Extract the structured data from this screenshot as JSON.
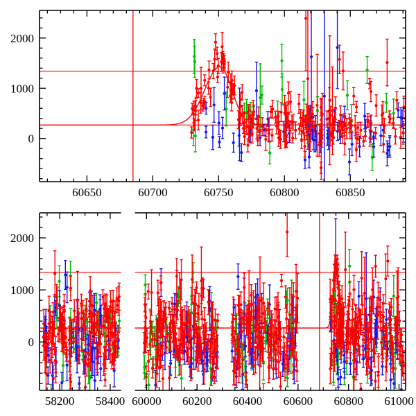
{
  "figure": {
    "background": "#ffffff",
    "frame_color": "#000000",
    "tick_label_color": "#000000"
  },
  "chart_data": {
    "type": "scatter",
    "title": "",
    "xlabel": "",
    "ylabel": "",
    "seed": 7,
    "colors": {
      "red": "#ff0000",
      "green": "#00bb00",
      "blue": "#1515ef"
    },
    "legend": "none",
    "grid": false,
    "description": "Two-panel transient/microlensing light curve: flux vs MJD. Dense survey photometry in red, green and blue with vertical error bars, red model curve (flat baseline 268 with asymmetric peak ~1430 at MJD 60751), red horizontal reference lines at 268 and 1340, red vertical epoch line at MJD 60685. Bottom panel has a broken x-axis (gap between MJD 58443 and 59954) showing four observing seasons.",
    "panels": [
      {
        "name": "top",
        "x_segments": [
          {
            "min": 60614,
            "max": 60892,
            "major_ticks": [
              60650,
              60700,
              60750,
              60800,
              60850
            ],
            "minor_step": 10
          }
        ],
        "y_axis": {
          "min": -860,
          "max": 2550,
          "major_ticks": [
            0,
            1000,
            2000
          ],
          "minor_step": 200
        },
        "h_lines": [
          268,
          1340
        ],
        "v_lines": [
          60685
        ],
        "model": {
          "base": 268,
          "amp": 1160,
          "t0": 60751,
          "sigma_rise": 11.5,
          "sigma_fall": 9
        },
        "series": [
          {
            "name": "green-survey",
            "color_key": "green",
            "clusters": [
              {
                "x0": 60730,
                "x1": 60890,
                "n": 26,
                "mean": 430,
                "sd": 470,
                "err0": 150,
                "err1": 380,
                "spike_frac": 0.08,
                "spike_add": 1400
              }
            ]
          },
          {
            "name": "blue-survey",
            "color_key": "blue",
            "clusters": [
              {
                "x0": 60740,
                "x1": 60892,
                "n": 62,
                "mean": 120,
                "sd": 260,
                "err0": 100,
                "err1": 260,
                "spike_frac": 0.05,
                "spike_add": 1100
              },
              {
                "x0": 60818,
                "x1": 60856,
                "n": 3,
                "mean": 1500,
                "sd": 600,
                "err0": 800,
                "err1": 1900
              }
            ]
          },
          {
            "name": "red-survey",
            "color_key": "red",
            "clusters": [
              {
                "x0": 60727,
                "x1": 60783,
                "n": 72,
                "follow_model": true,
                "scatter": 175,
                "err0": 90,
                "err1": 210,
                "spike_frac": 0.04,
                "spike_add": 500
              },
              {
                "x0": 60783,
                "x1": 60892,
                "n": 125,
                "mean": 260,
                "sd": 235,
                "err0": 90,
                "err1": 240,
                "spike_frac": 0.07,
                "spike_add": 1300
              },
              {
                "x0": 60813,
                "x1": 60842,
                "n": 6,
                "mean": 900,
                "sd": 650,
                "err0": 700,
                "err1": 1500
              }
            ]
          }
        ]
      },
      {
        "name": "bottom",
        "x_segments": [
          {
            "min": 58120,
            "max": 58443,
            "major_ticks": [
              58200,
              58400
            ],
            "minor_step": 50
          },
          {
            "min": 59954,
            "max": 61026,
            "major_ticks": [
              60000,
              60200,
              60400,
              60600,
              60800,
              61000
            ],
            "minor_step": 50
          }
        ],
        "y_axis": {
          "min": -930,
          "max": 2480,
          "major_ticks": [
            0,
            1000,
            2000
          ],
          "minor_step": 200
        },
        "h_lines": [
          268,
          1340
        ],
        "v_lines": [
          60685
        ],
        "model": {
          "base": 268,
          "amp": 1160,
          "t0": 60751,
          "sigma_rise": 11.5,
          "sigma_fall": 9
        },
        "series": [
          {
            "name": "green-survey",
            "color_key": "green",
            "clusters": [
              {
                "x0": 58135,
                "x1": 58438,
                "n": 36,
                "mean": 80,
                "sd": 420,
                "err0": 150,
                "err1": 400,
                "spike_frac": 0.05,
                "spike_add": 1200
              },
              {
                "x0": 59988,
                "x1": 60282,
                "n": 35,
                "mean": 80,
                "sd": 420,
                "err0": 150,
                "err1": 400,
                "spike_frac": 0.05,
                "spike_add": 1200
              },
              {
                "x0": 60338,
                "x1": 60602,
                "n": 31,
                "mean": 80,
                "sd": 420,
                "err0": 150,
                "err1": 400,
                "spike_frac": 0.05,
                "spike_add": 1200
              },
              {
                "x0": 60727,
                "x1": 61020,
                "n": 36,
                "mean": 80,
                "sd": 420,
                "err0": 150,
                "err1": 400,
                "spike_frac": 0.05,
                "spike_add": 1200
              }
            ]
          },
          {
            "name": "blue-survey",
            "color_key": "blue",
            "clusters": [
              {
                "x0": 58135,
                "x1": 58438,
                "n": 56,
                "mean": -30,
                "sd": 380,
                "err0": 120,
                "err1": 330,
                "spike_frac": 0.05,
                "spike_add": 1100
              },
              {
                "x0": 59988,
                "x1": 60282,
                "n": 55,
                "mean": -30,
                "sd": 380,
                "err0": 120,
                "err1": 330,
                "spike_frac": 0.05,
                "spike_add": 1100
              },
              {
                "x0": 60338,
                "x1": 60602,
                "n": 49,
                "mean": -30,
                "sd": 380,
                "err0": 120,
                "err1": 330,
                "spike_frac": 0.05,
                "spike_add": 1100
              },
              {
                "x0": 60727,
                "x1": 61020,
                "n": 56,
                "mean": -30,
                "sd": 380,
                "err0": 120,
                "err1": 330,
                "spike_frac": 0.05,
                "spike_add": 1100
              }
            ]
          },
          {
            "name": "red-survey",
            "color_key": "red",
            "clusters": [
              {
                "x0": 58135,
                "x1": 58438,
                "n": 150,
                "mean": 120,
                "sd": 380,
                "err0": 110,
                "err1": 300,
                "spike_frac": 0.08,
                "spike_add": 1300
              },
              {
                "x0": 59988,
                "x1": 60282,
                "n": 148,
                "mean": 120,
                "sd": 380,
                "err0": 110,
                "err1": 300,
                "spike_frac": 0.08,
                "spike_add": 1300
              },
              {
                "x0": 60338,
                "x1": 60602,
                "n": 132,
                "mean": 120,
                "sd": 380,
                "err0": 110,
                "err1": 300,
                "spike_frac": 0.08,
                "spike_add": 1300
              },
              {
                "x0": 60727,
                "x1": 61020,
                "n": 150,
                "mean": 120,
                "sd": 380,
                "err0": 110,
                "err1": 300,
                "spike_frac": 0.08,
                "spike_add": 1300
              },
              {
                "x0": 60737,
                "x1": 60782,
                "n": 38,
                "follow_model": true,
                "scatter": 200,
                "err0": 110,
                "err1": 260,
                "spike_frac": 0.03,
                "spike_add": 400
              }
            ]
          }
        ]
      }
    ]
  }
}
